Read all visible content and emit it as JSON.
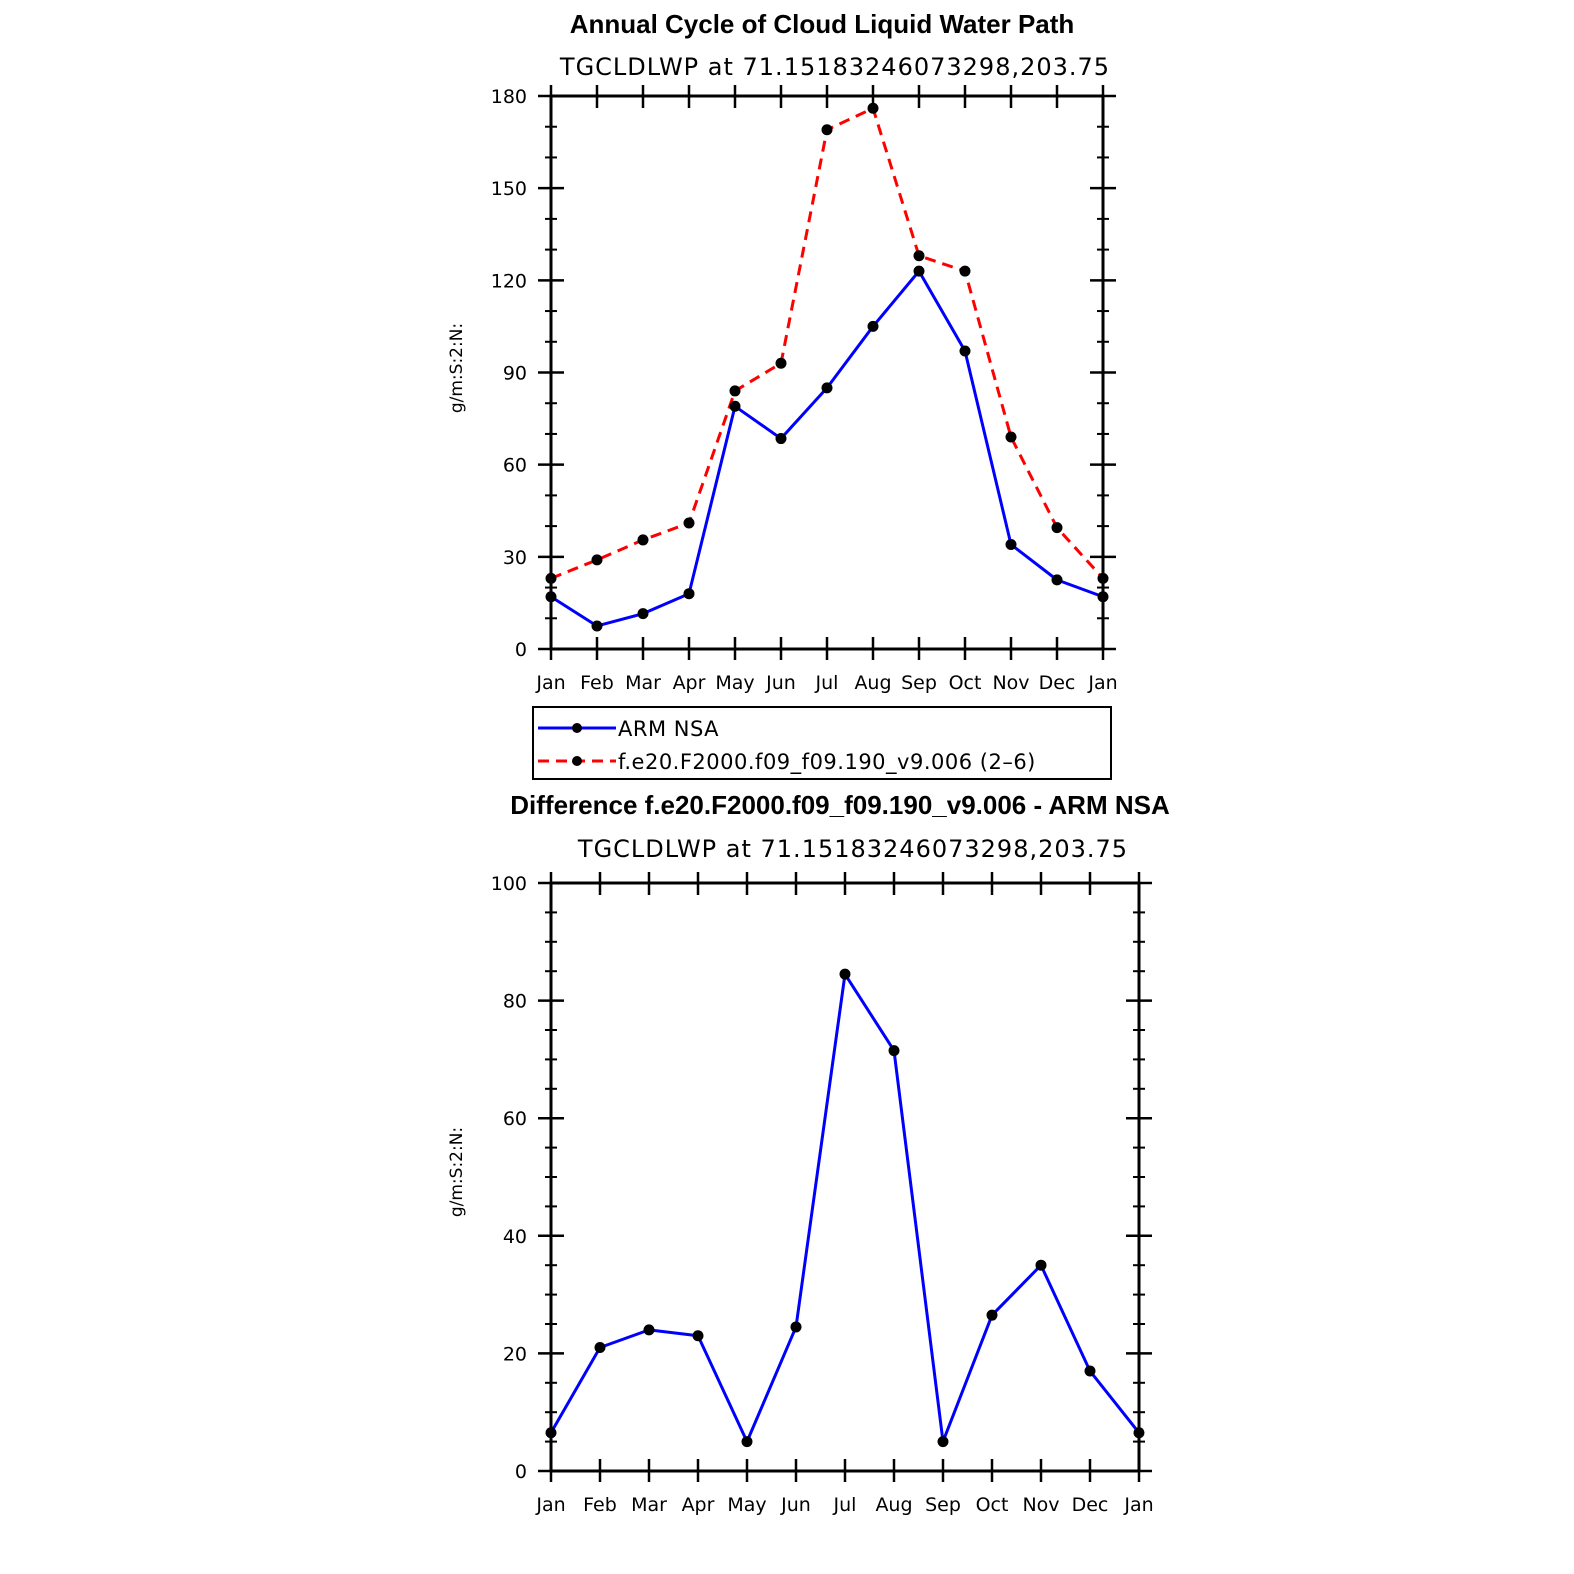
{
  "chart_data": [
    {
      "type": "line",
      "title": "Annual Cycle of Cloud Liquid Water Path",
      "subtitle": "TGCLDLWP  at  71.15183246073298,203.75",
      "xlabel": "",
      "ylabel": "g/m:S:2:N:",
      "ylim": [
        0,
        180
      ],
      "yticks": [
        0,
        30,
        60,
        90,
        120,
        150,
        180
      ],
      "categories": [
        "Jan",
        "Feb",
        "Mar",
        "Apr",
        "May",
        "Jun",
        "Jul",
        "Aug",
        "Sep",
        "Oct",
        "Nov",
        "Dec",
        "Jan"
      ],
      "series": [
        {
          "name": "ARM  NSA",
          "color": "#0000ff",
          "dash": "solid",
          "values": [
            17,
            7.5,
            11.5,
            18,
            79,
            68.5,
            85,
            105,
            123,
            97,
            34,
            22.5,
            17
          ]
        },
        {
          "name": "f.e20.F2000.f09_f09.190_v9.006  (2–6)",
          "color": "#ff0000",
          "dash": "dashed",
          "values": [
            23,
            29,
            35.5,
            41,
            84,
            93,
            169,
            176,
            128,
            123,
            69,
            39.5,
            23
          ]
        }
      ],
      "legend": "below"
    },
    {
      "type": "line",
      "title": "Difference f.e20.F2000.f09_f09.190_v9.006 - ARM NSA",
      "subtitle": "TGCLDLWP  at  71.15183246073298,203.75",
      "xlabel": "",
      "ylabel": "g/m:S:2:N:",
      "ylim": [
        0,
        100
      ],
      "yticks": [
        0,
        20,
        40,
        60,
        80,
        100
      ],
      "categories": [
        "Jan",
        "Feb",
        "Mar",
        "Apr",
        "May",
        "Jun",
        "Jul",
        "Aug",
        "Sep",
        "Oct",
        "Nov",
        "Dec",
        "Jan"
      ],
      "series": [
        {
          "name": "Difference",
          "color": "#0000ff",
          "dash": "solid",
          "values": [
            6.5,
            21,
            24,
            23,
            5,
            24.5,
            84.5,
            71.5,
            5,
            26.5,
            35,
            17,
            6.5
          ]
        }
      ]
    }
  ]
}
